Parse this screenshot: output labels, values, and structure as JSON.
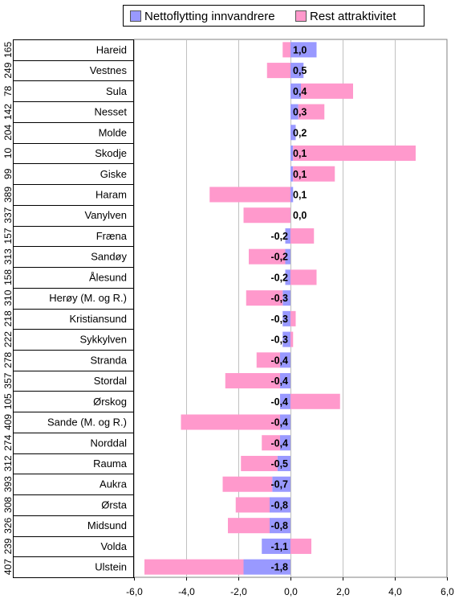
{
  "chart_data": {
    "type": "bar",
    "orientation": "horizontal",
    "xlim": [
      -6.0,
      6.0
    ],
    "x_ticks": [
      "-6,0",
      "-4,0",
      "-2,0",
      "0,0",
      "2,0",
      "4,0",
      "6,0"
    ],
    "grid": true,
    "legend_placement": "top",
    "colors": {
      "series1": "#9999ff",
      "series2": "#ff99cc",
      "grid": "#c0c0c0"
    },
    "series": [
      {
        "name": "Nettoflytting innvandrere",
        "values": [
          1.0,
          0.5,
          0.4,
          0.3,
          0.2,
          0.1,
          0.1,
          0.1,
          0.0,
          -0.2,
          -0.2,
          -0.2,
          -0.3,
          -0.3,
          -0.3,
          -0.4,
          -0.4,
          -0.4,
          -0.4,
          -0.4,
          -0.5,
          -0.7,
          -0.8,
          -0.8,
          -1.1,
          -1.8
        ]
      },
      {
        "name": "Rest attraktivitet",
        "values": [
          -0.3,
          -0.9,
          2.0,
          1.0,
          0.0,
          4.7,
          1.6,
          -3.1,
          -1.8,
          0.9,
          -1.4,
          1.0,
          -1.4,
          0.2,
          0.1,
          -0.9,
          -2.1,
          1.9,
          -3.8,
          -0.7,
          -1.4,
          -1.9,
          -1.3,
          -1.6,
          0.8,
          -3.8
        ]
      }
    ],
    "data_labels": [
      "1,0",
      "0,5",
      "0,4",
      "0,3",
      "0,2",
      "0,1",
      "0,1",
      "0,1",
      "0,0",
      "-0,2",
      "-0,2",
      "-0,2",
      "-0,3",
      "-0,3",
      "-0,3",
      "-0,4",
      "-0,4",
      "-0,4",
      "-0,4",
      "-0,4",
      "-0,5",
      "-0,7",
      "-0,8",
      "-0,8",
      "-1,1",
      "-1,8"
    ],
    "codes": [
      "165",
      "249",
      "78",
      "142",
      "204",
      "10",
      "99",
      "389",
      "337",
      "157",
      "313",
      "158",
      "310",
      "218",
      "222",
      "278",
      "357",
      "105",
      "409",
      "274",
      "312",
      "393",
      "308",
      "326",
      "239",
      "407"
    ],
    "categories": [
      "Hareid",
      "Vestnes",
      "Sula",
      "Nesset",
      "Molde",
      "Skodje",
      "Giske",
      "Haram",
      "Vanylven",
      "Fræna",
      "Sandøy",
      "Ålesund",
      "Herøy (M. og R.)",
      "Kristiansund",
      "Sykkylven",
      "Stranda",
      "Stordal",
      "Ørskog",
      "Sande (M. og R.)",
      "Norddal",
      "Rauma",
      "Aukra",
      "Ørsta",
      "Midsund",
      "Volda",
      "Ulstein"
    ]
  }
}
